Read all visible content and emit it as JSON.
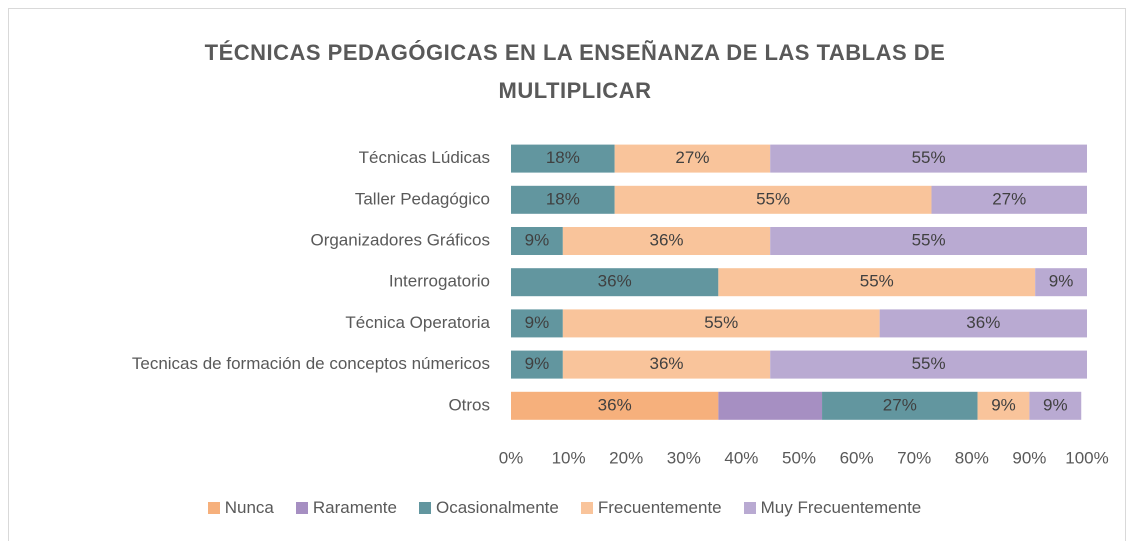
{
  "chart_data": {
    "type": "stacked_bar_horizontal",
    "title": "TÉCNICAS PEDAGÓGICAS EN LA ENSEÑANZA DE LAS TABLAS DE MULTIPLICAR",
    "categories": [
      "Técnicas Lúdicas",
      "Taller Pedagógico",
      "Organizadores Gráficos",
      "Interrogatorio",
      "Técnica Operatoria",
      "Tecnicas de formación de conceptos númericos",
      "Otros"
    ],
    "series": [
      {
        "name": "Nunca",
        "color": "#f6b07c",
        "values": [
          0,
          0,
          0,
          0,
          0,
          0,
          36
        ],
        "value_labels": [
          null,
          null,
          null,
          null,
          null,
          null,
          "36%"
        ]
      },
      {
        "name": "Raramente",
        "color": "#a68fc2",
        "values": [
          0,
          0,
          0,
          0,
          0,
          0,
          18
        ],
        "value_labels": [
          null,
          null,
          null,
          null,
          null,
          null,
          null
        ]
      },
      {
        "name": "Ocasionalmente",
        "color": "#62969f",
        "values": [
          18,
          18,
          9,
          36,
          9,
          9,
          27
        ],
        "value_labels": [
          "18%",
          "18%",
          "9%",
          "36%",
          "9%",
          "9%",
          "27%"
        ]
      },
      {
        "name": "Frecuentemente",
        "color": "#f9c49b",
        "values": [
          27,
          55,
          36,
          55,
          55,
          36,
          9
        ],
        "value_labels": [
          "27%",
          "55%",
          "36%",
          "55%",
          "55%",
          "36%",
          "9%"
        ]
      },
      {
        "name": "Muy Frecuentemente",
        "color": "#b9aad2",
        "values": [
          55,
          27,
          55,
          9,
          36,
          55,
          9
        ],
        "value_labels": [
          "55%",
          "27%",
          "55%",
          "9%",
          "36%",
          "55%",
          "9%"
        ]
      }
    ],
    "xlim": [
      0,
      100
    ],
    "xticks": [
      {
        "value": 0,
        "label": "0%"
      },
      {
        "value": 10,
        "label": "10%"
      },
      {
        "value": 20,
        "label": "20%"
      },
      {
        "value": 30,
        "label": "30%"
      },
      {
        "value": 40,
        "label": "40%"
      },
      {
        "value": 50,
        "label": "50%"
      },
      {
        "value": 60,
        "label": "60%"
      },
      {
        "value": 70,
        "label": "70%"
      },
      {
        "value": 80,
        "label": "80%"
      },
      {
        "value": 90,
        "label": "90%"
      },
      {
        "value": 100,
        "label": "100%"
      }
    ],
    "grid": false,
    "legend": "bottom"
  }
}
